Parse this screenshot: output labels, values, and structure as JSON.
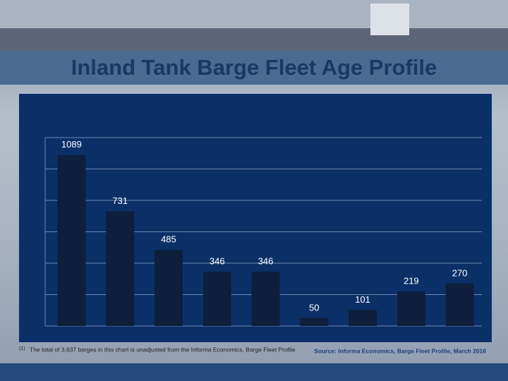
{
  "header": {
    "title": "Inland Tank Barge Fleet Age Profile"
  },
  "chart_data": {
    "type": "bar",
    "categories": [
      null,
      null,
      null,
      null,
      null,
      null,
      null,
      null,
      null
    ],
    "values": [
      1089,
      731,
      485,
      346,
      346,
      50,
      101,
      219,
      270
    ],
    "color": "#0d1f3c",
    "ylim": [
      0,
      1200
    ],
    "yticks": [
      0,
      200,
      400,
      600,
      800,
      1000,
      1200
    ],
    "grid": true
  },
  "footer": {
    "footnote_marker": "(1)",
    "footnote": "The total of 3,637 barges in this chart is unadjusted from the Informa Economics, Barge Fleet Profile",
    "source": "Source: Informa Economics, Barge Fleet Profile, March 2016"
  }
}
